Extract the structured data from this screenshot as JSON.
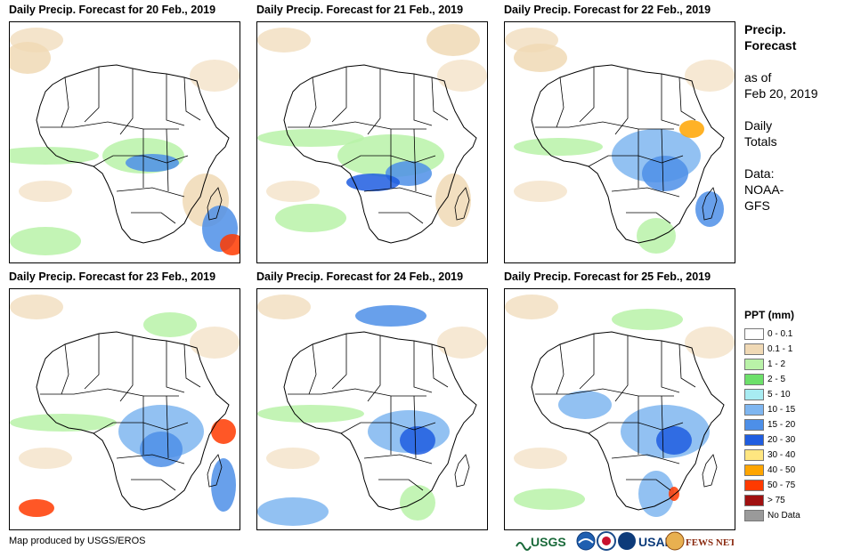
{
  "panels": [
    {
      "title": "Daily Precip. Forecast for 20 Feb., 2019"
    },
    {
      "title": "Daily Precip. Forecast for 21 Feb., 2019"
    },
    {
      "title": "Daily Precip. Forecast for 22 Feb., 2019"
    },
    {
      "title": "Daily Precip. Forecast for 23 Feb., 2019"
    },
    {
      "title": "Daily Precip. Forecast for 24 Feb., 2019"
    },
    {
      "title": "Daily Precip. Forecast for 25 Feb., 2019"
    }
  ],
  "side": {
    "title_line1": "Precip.",
    "title_line2": "Forecast",
    "asof_line1": "as of",
    "asof_line2": "Feb 20, 2019",
    "daily_line1": "Daily",
    "daily_line2": "Totals",
    "data_line1": "Data:",
    "data_line2": "NOAA-",
    "data_line3": "GFS"
  },
  "legend": {
    "title": "PPT (mm)",
    "items": [
      {
        "label": "0 - 0.1",
        "color": "#ffffff"
      },
      {
        "label": "0.1 - 1",
        "color": "#f0d9b5"
      },
      {
        "label": "1 - 2",
        "color": "#b9f2a8"
      },
      {
        "label": "2 - 5",
        "color": "#6de06a"
      },
      {
        "label": "5 - 10",
        "color": "#a8ecf2"
      },
      {
        "label": "10 - 15",
        "color": "#7fb6f0"
      },
      {
        "label": "15 - 20",
        "color": "#4d8fe8"
      },
      {
        "label": "20 - 30",
        "color": "#1f5de0"
      },
      {
        "label": "30 - 40",
        "color": "#ffe680"
      },
      {
        "label": "40 - 50",
        "color": "#ffa500"
      },
      {
        "label": "50 - 75",
        "color": "#ff3a00"
      },
      {
        "label": "> 75",
        "color": "#a01010"
      },
      {
        "label": "No Data",
        "color": "#9a9a9a"
      }
    ]
  },
  "credit": "Map produced by USGS/EROS",
  "logos": {
    "usgs": "USGS",
    "usaid": "USAID",
    "fewsnet": "FEWS NET"
  }
}
